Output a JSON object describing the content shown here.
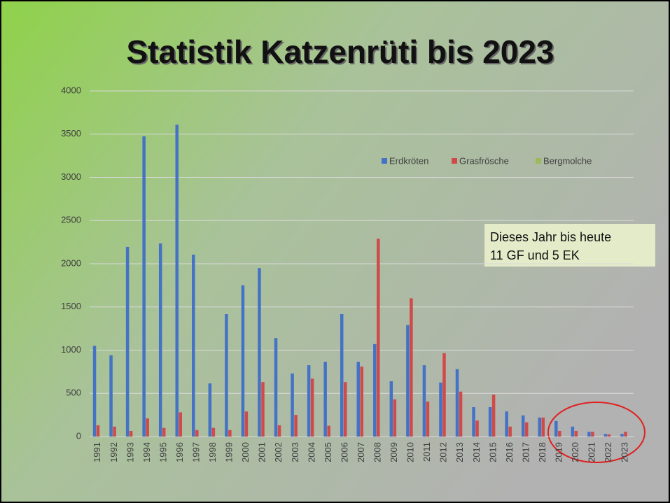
{
  "chart_data": {
    "type": "bar",
    "title": "Statistik Katzenrüti bis 2023",
    "categories": [
      "1991",
      "1992",
      "1993",
      "1994",
      "1995",
      "1996",
      "1997",
      "1998",
      "1999",
      "2000",
      "2001",
      "2002",
      "2003",
      "2004",
      "2005",
      "2006",
      "2007",
      "2008",
      "2009",
      "2010",
      "2011",
      "2012",
      "2013",
      "2014",
      "2015",
      "2016",
      "2017",
      "2018",
      "2019",
      "2020",
      "2021",
      "2022",
      "2023"
    ],
    "series": [
      {
        "name": "Erdkröten",
        "color": "#4472c4",
        "values": [
          1050,
          940,
          2195,
          3475,
          2235,
          3610,
          2105,
          615,
          1417,
          1750,
          1950,
          1140,
          730,
          825,
          865,
          1417,
          865,
          1070,
          640,
          1290,
          825,
          625,
          780,
          340,
          340,
          290,
          245,
          220,
          180,
          115,
          55,
          30,
          30
        ]
      },
      {
        "name": "Grasfrösche",
        "color": "#d04a4a",
        "values": [
          130,
          115,
          65,
          210,
          100,
          280,
          75,
          100,
          75,
          290,
          630,
          130,
          250,
          670,
          125,
          630,
          810,
          2290,
          430,
          1600,
          405,
          965,
          520,
          185,
          485,
          115,
          165,
          220,
          65,
          65,
          55,
          25,
          55
        ]
      },
      {
        "name": "Bergmolche",
        "color": "#9bbb59",
        "values": [
          0,
          0,
          0,
          0,
          0,
          0,
          0,
          0,
          0,
          0,
          0,
          0,
          0,
          0,
          0,
          0,
          0,
          0,
          0,
          0,
          0,
          0,
          0,
          0,
          0,
          0,
          0,
          0,
          0,
          0,
          0,
          0,
          0
        ]
      }
    ],
    "ylim": [
      0,
      4000
    ],
    "yticks": [
      0,
      500,
      1000,
      1500,
      2000,
      2500,
      3000,
      3500,
      4000
    ],
    "grid": true,
    "legend": "top-right",
    "annotations": [
      "Dieses Jahr bis heute",
      "11 GF und 5 EK"
    ]
  }
}
